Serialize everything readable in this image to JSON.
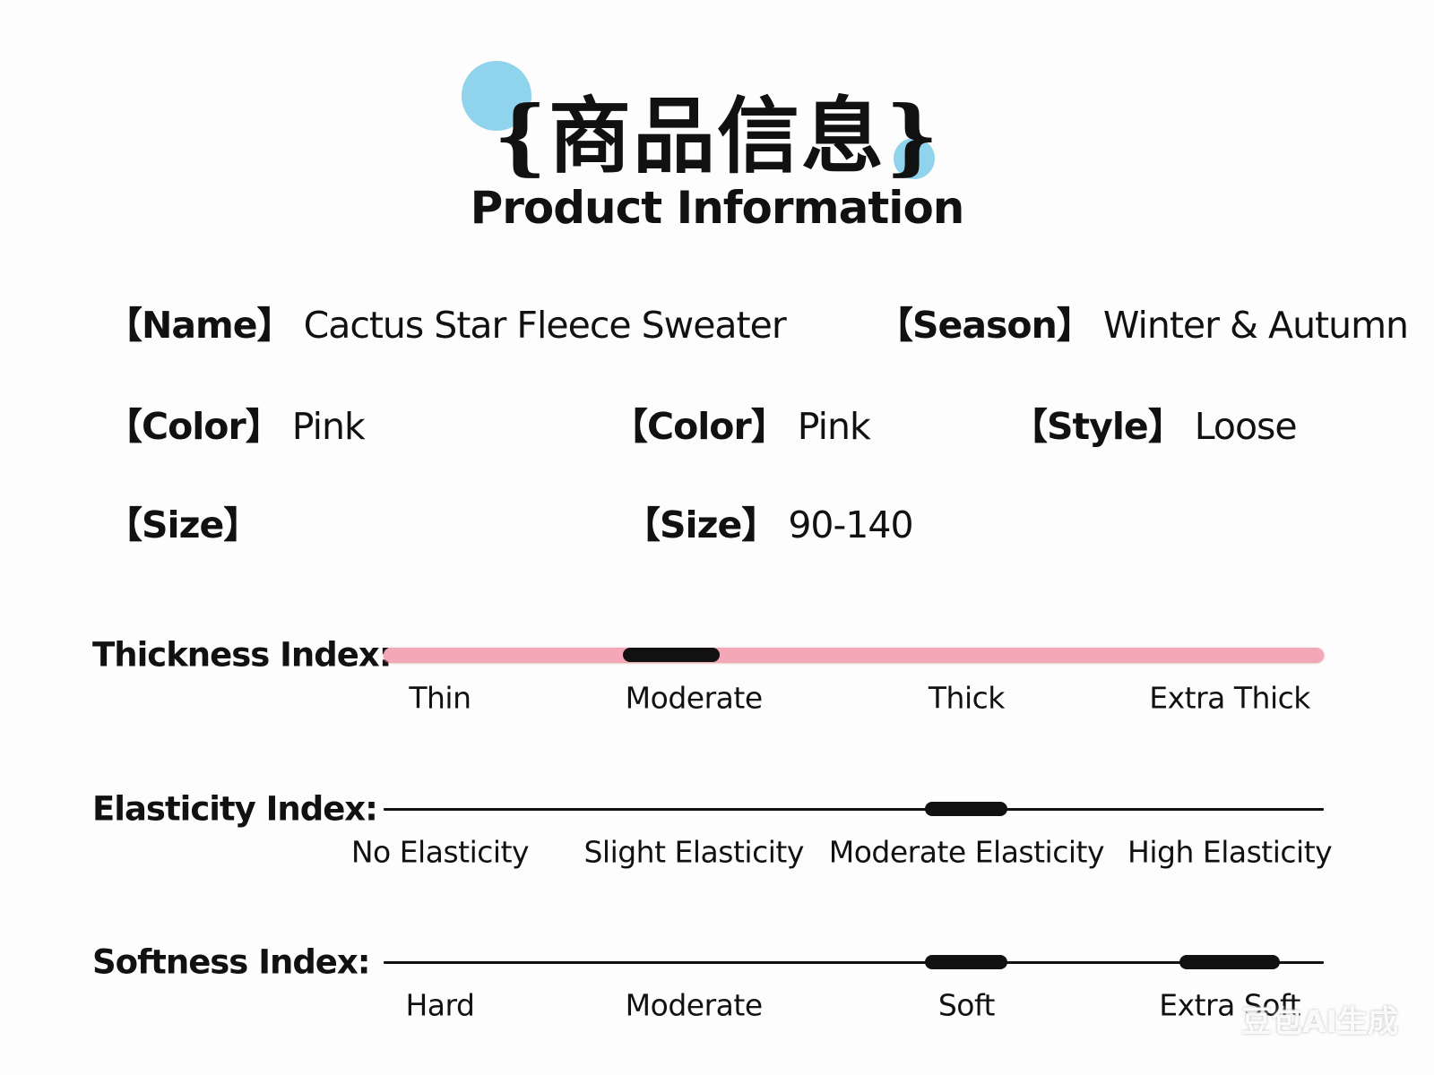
{
  "header": {
    "title_cn": "{商品信息}",
    "title_en": "Product Information"
  },
  "fields": [
    {
      "label": "【Name】",
      "value": "Cactus Star Fleece Sweater"
    },
    {
      "label": "【Season】",
      "value": "Winter & Autumn"
    },
    {
      "label": "【Color】",
      "value": "Pink"
    },
    {
      "label": "【Color】",
      "value": "Pink"
    },
    {
      "label": "【Style】",
      "value": "Loose"
    },
    {
      "label": "【Size】"
    },
    {
      "label": "【Size】",
      "value": "90-140"
    }
  ],
  "indices": [
    {
      "label": "Thickness Index:",
      "levels": [
        "Thin",
        "Moderate",
        "Thick",
        "Extra Thick"
      ],
      "selected": [
        1
      ],
      "track_color": "#f4a7b6"
    },
    {
      "label": "Elasticity Index:",
      "levels": [
        "No Elasticity",
        "Slight Elasticity",
        "Moderate Elasticity",
        "High Elasticity"
      ],
      "selected": [
        2
      ],
      "track_color": "#111111"
    },
    {
      "label": "Softness Index:",
      "levels": [
        "Hard",
        "Moderate",
        "Soft",
        "Extra Soft"
      ],
      "selected": [
        2,
        3
      ],
      "track_color": "#111111"
    }
  ],
  "watermark": "豆包AI生成"
}
